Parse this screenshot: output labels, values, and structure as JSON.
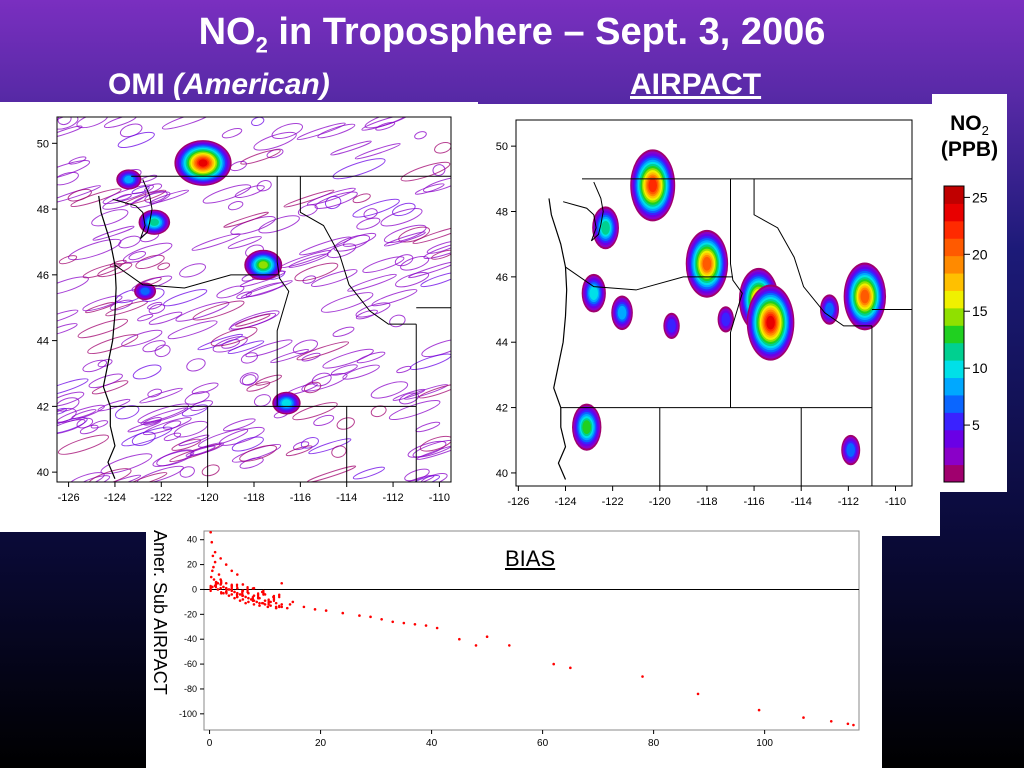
{
  "slide": {
    "title_main": "NO",
    "title_sub": "2",
    "title_rest": " in Troposphere – Sept. 3, 2006",
    "label_omi": "OMI",
    "label_omi_em": "(American)",
    "label_airpact": "AIRPACT"
  },
  "legend": {
    "title_main": "NO",
    "title_sub": "2",
    "title_line2": "(PPB)",
    "ticks": [
      "25",
      "20",
      "15",
      "10",
      "5"
    ],
    "tick_values": [
      25,
      20,
      15,
      10,
      5
    ],
    "range": [
      0,
      26
    ],
    "colors": [
      "#a0006e",
      "#8a00c8",
      "#6a00e6",
      "#3a22ff",
      "#0a66ff",
      "#00a8ff",
      "#00e0e8",
      "#00d090",
      "#20d020",
      "#90e000",
      "#f0f000",
      "#ffc000",
      "#ff8a00",
      "#ff5a00",
      "#ff2a00",
      "#e80000",
      "#c00000"
    ]
  },
  "chart_data": [
    {
      "type": "heatmap",
      "name": "OMI",
      "xticks": [
        "-126",
        "-124",
        "-122",
        "-120",
        "-118",
        "-116",
        "-114",
        "-112",
        "-110"
      ],
      "yticks": [
        "40",
        "42",
        "44",
        "46",
        "48",
        "50"
      ],
      "xlim": [
        -126.5,
        -109.5
      ],
      "ylim": [
        39.7,
        50.8
      ],
      "hotspots": [
        {
          "lon": -120.2,
          "lat": 49.4,
          "value": 24
        },
        {
          "lon": -122.3,
          "lat": 47.6,
          "value": 12
        },
        {
          "lon": -117.6,
          "lat": 46.3,
          "value": 15
        },
        {
          "lon": -122.7,
          "lat": 45.5,
          "value": 8
        },
        {
          "lon": -116.6,
          "lat": 42.1,
          "value": 10
        },
        {
          "lon": -123.4,
          "lat": 48.9,
          "value": 9
        }
      ]
    },
    {
      "type": "heatmap",
      "name": "AIRPACT",
      "xticks": [
        "-126",
        "-124",
        "-122",
        "-120",
        "-118",
        "-116",
        "-114",
        "-112",
        "-110"
      ],
      "yticks": [
        "40",
        "42",
        "44",
        "46",
        "48",
        "50"
      ],
      "xlim": [
        -126.1,
        -109.3
      ],
      "ylim": [
        39.6,
        50.8
      ],
      "hotspots": [
        {
          "lon": -120.3,
          "lat": 48.8,
          "value": 23
        },
        {
          "lon": -118.0,
          "lat": 46.4,
          "value": 22
        },
        {
          "lon": -122.3,
          "lat": 47.5,
          "value": 12
        },
        {
          "lon": -115.8,
          "lat": 45.3,
          "value": 20
        },
        {
          "lon": -115.3,
          "lat": 44.6,
          "value": 24
        },
        {
          "lon": -111.3,
          "lat": 45.4,
          "value": 21
        },
        {
          "lon": -122.8,
          "lat": 45.5,
          "value": 10
        },
        {
          "lon": -121.6,
          "lat": 44.9,
          "value": 9
        },
        {
          "lon": -123.1,
          "lat": 41.4,
          "value": 13
        },
        {
          "lon": -112.8,
          "lat": 45.0,
          "value": 7
        },
        {
          "lon": -119.5,
          "lat": 44.5,
          "value": 6
        },
        {
          "lon": -111.9,
          "lat": 40.7,
          "value": 8
        },
        {
          "lon": -117.2,
          "lat": 44.7,
          "value": 6
        }
      ]
    },
    {
      "type": "scatter",
      "name": "BIAS",
      "title": "BIAS",
      "ylabel": "Amer. Sub AIRPACT",
      "xlim": [
        -1,
        117
      ],
      "ylim": [
        -113,
        47
      ],
      "xticks": [
        "0",
        "20",
        "40",
        "60",
        "80",
        "100"
      ],
      "yticks": [
        "40",
        "20",
        "0",
        "-20",
        "-40",
        "-60",
        "-80",
        "-100"
      ],
      "points": [
        [
          0.2,
          46
        ],
        [
          0.4,
          38
        ],
        [
          0.6,
          27
        ],
        [
          1.0,
          22
        ],
        [
          0.5,
          15
        ],
        [
          0.3,
          10
        ],
        [
          0.8,
          8
        ],
        [
          1.2,
          6
        ],
        [
          1.5,
          5
        ],
        [
          2.0,
          4
        ],
        [
          2.5,
          2
        ],
        [
          3.0,
          1
        ],
        [
          3.5,
          0
        ],
        [
          4.0,
          -1
        ],
        [
          4.5,
          -2
        ],
        [
          5.0,
          -3
        ],
        [
          5.5,
          -4
        ],
        [
          6.0,
          -5
        ],
        [
          6.5,
          -6
        ],
        [
          7.0,
          -7
        ],
        [
          7.5,
          -8
        ],
        [
          8.0,
          -9
        ],
        [
          8.5,
          -10
        ],
        [
          9.0,
          -11
        ],
        [
          9.5,
          -11
        ],
        [
          10.0,
          -12
        ],
        [
          11.0,
          -13
        ],
        [
          12.0,
          -14
        ],
        [
          13.0,
          -14
        ],
        [
          14.0,
          -15
        ],
        [
          1.0,
          3
        ],
        [
          2.0,
          1
        ],
        [
          3.0,
          -2
        ],
        [
          4.0,
          -4
        ],
        [
          5.0,
          -6
        ],
        [
          6.0,
          -8
        ],
        [
          7.0,
          -10
        ],
        [
          0.5,
          2
        ],
        [
          1.5,
          0
        ],
        [
          2.5,
          -3
        ],
        [
          3.5,
          -5
        ],
        [
          4.5,
          -7
        ],
        [
          5.5,
          -9
        ],
        [
          6.5,
          -11
        ],
        [
          8.0,
          -12
        ],
        [
          9.0,
          -13
        ],
        [
          10.5,
          -14
        ],
        [
          12.0,
          -15
        ],
        [
          2.0,
          8
        ],
        [
          3.0,
          5
        ],
        [
          4.0,
          3
        ],
        [
          5.0,
          1
        ],
        [
          6.0,
          -1
        ],
        [
          7.0,
          -3
        ],
        [
          8.0,
          -5
        ],
        [
          9.0,
          -7
        ],
        [
          10.0,
          -9
        ],
        [
          11.0,
          -10
        ],
        [
          12.0,
          -11
        ],
        [
          13.0,
          -12
        ],
        [
          15.0,
          -10
        ],
        [
          17.0,
          -14
        ],
        [
          19.0,
          -16
        ],
        [
          21.0,
          -17
        ],
        [
          24.0,
          -19
        ],
        [
          27.0,
          -21
        ],
        [
          29.0,
          -22
        ],
        [
          31.0,
          -24
        ],
        [
          33.0,
          -26
        ],
        [
          35.0,
          -27
        ],
        [
          37.0,
          -28
        ],
        [
          39.0,
          -29
        ],
        [
          41.0,
          -31
        ],
        [
          45.0,
          -40
        ],
        [
          48.0,
          -45
        ],
        [
          50.0,
          -38
        ],
        [
          54.0,
          -45
        ],
        [
          62.0,
          -60
        ],
        [
          65.0,
          -63
        ],
        [
          78.0,
          -70
        ],
        [
          88.0,
          -84
        ],
        [
          99.0,
          -97
        ],
        [
          107.0,
          -103
        ],
        [
          112.0,
          -106
        ],
        [
          115.0,
          -108
        ],
        [
          116.0,
          -109
        ],
        [
          3.0,
          20
        ],
        [
          5.0,
          12
        ],
        [
          2.0,
          25
        ],
        [
          1.0,
          30
        ],
        [
          4.0,
          15
        ],
        [
          0.7,
          18
        ],
        [
          1.7,
          12
        ],
        [
          6.0,
          4
        ],
        [
          8.0,
          1
        ],
        [
          10.0,
          -4
        ],
        [
          13.0,
          5
        ],
        [
          14.5,
          -12
        ],
        [
          11.5,
          -6
        ],
        [
          9.5,
          -2
        ]
      ]
    }
  ]
}
